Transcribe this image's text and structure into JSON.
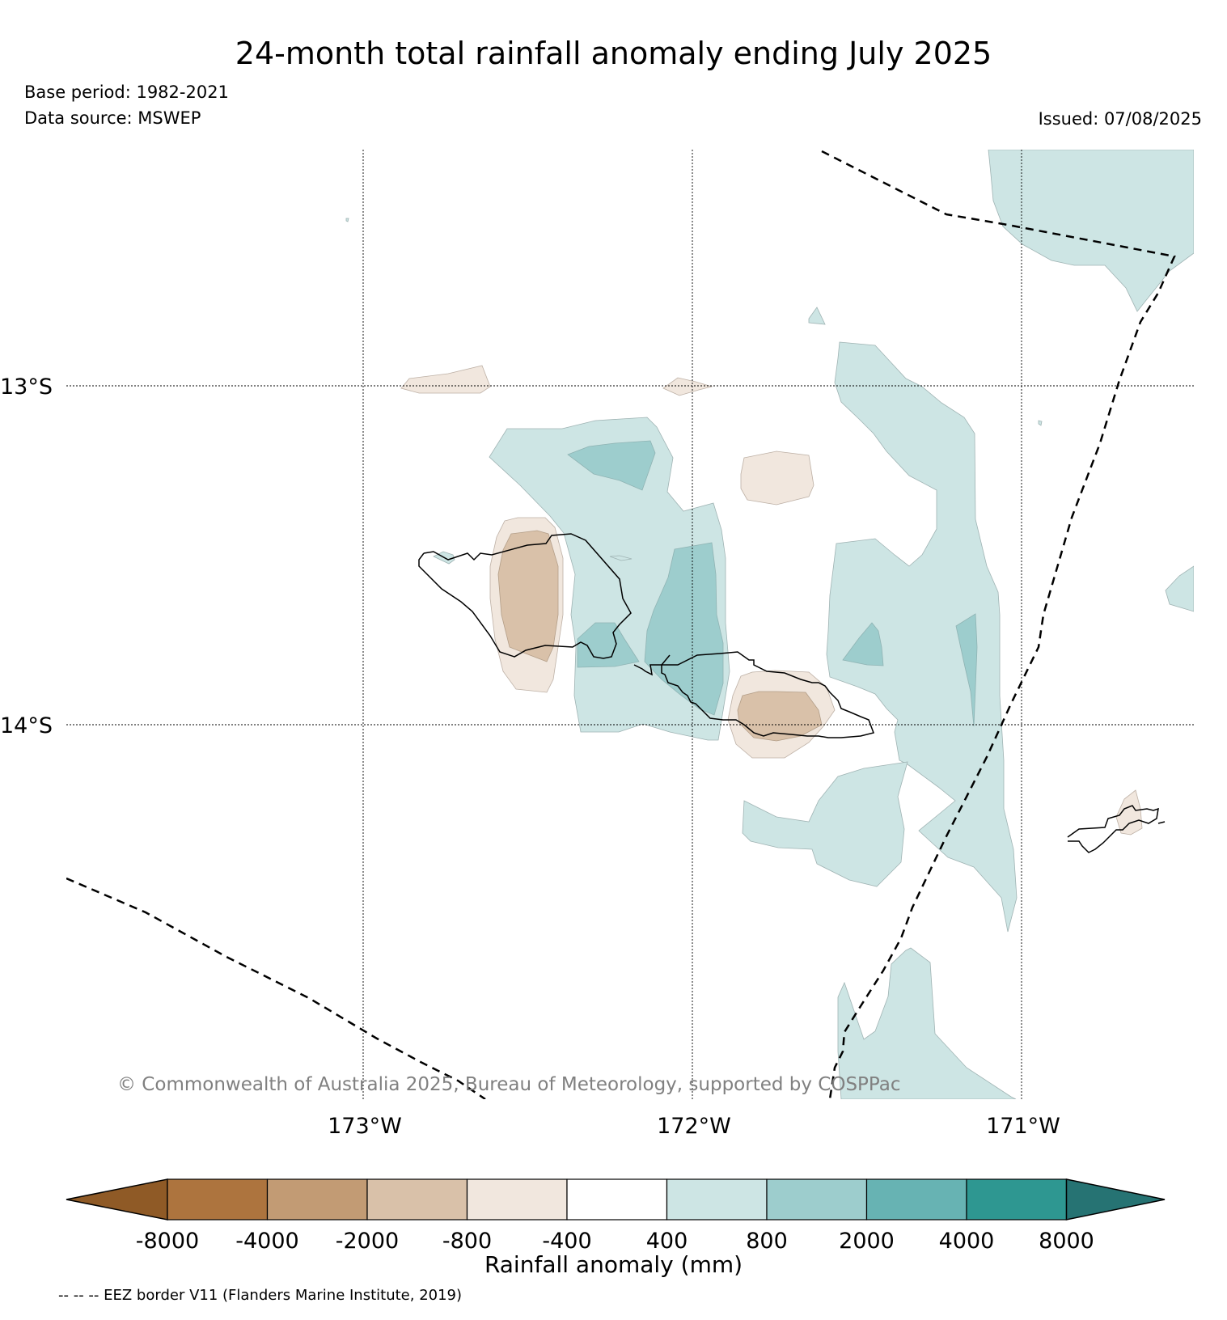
{
  "header": {
    "title": "24-month total rainfall anomaly ending July 2025",
    "base_period": "Base period: 1982-2021",
    "data_source": "Data source: MSWEP",
    "issued": "Issued: 07/08/2025"
  },
  "map": {
    "lat_labels": [
      "13°S",
      "14°S"
    ],
    "lon_labels": [
      "173°W",
      "172°W",
      "171°W"
    ],
    "copyright": "© Commonwealth of Australia 2025, Bureau of Meteorology, supported by COSPPac",
    "gridlines": true,
    "islands": [
      "Savai'i",
      "Upolu",
      "Tutuila"
    ]
  },
  "colorbar": {
    "label": "Rainfall anomaly (mm)",
    "ticks": [
      "-8000",
      "-4000",
      "-2000",
      "-800",
      "-400",
      "400",
      "800",
      "2000",
      "4000",
      "8000"
    ],
    "colors": [
      "#8f5a26",
      "#ad743e",
      "#c29b74",
      "#d9c1a9",
      "#f1e7de",
      "#ffffff",
      "#cde5e4",
      "#9dcdcd",
      "#67b3b3",
      "#2e9791",
      "#267373"
    ]
  },
  "footer": {
    "eez_note": "-- -- -- EEZ border V11 (Flanders Marine Institute, 2019)"
  }
}
